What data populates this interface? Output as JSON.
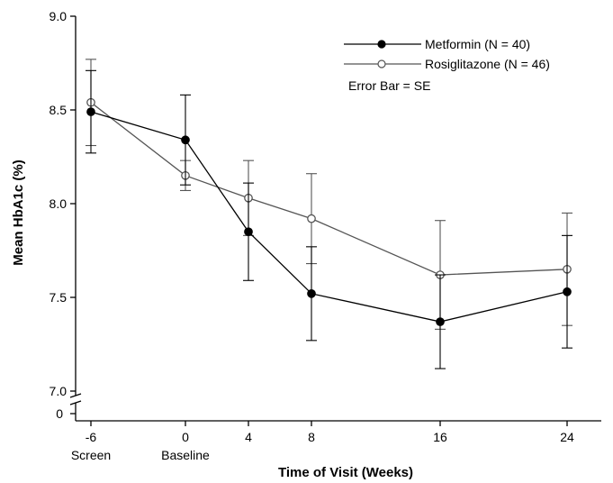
{
  "chart_data": {
    "type": "line",
    "xlabel": "Time of Visit (Weeks)",
    "ylabel": "Mean HbA1c (%)",
    "ylim": [
      7.0,
      9.0
    ],
    "yticks": [
      "9.0",
      "8.5",
      "8.0",
      "7.5",
      "7.0"
    ],
    "y_break_label": "0",
    "x": [
      -6,
      0,
      4,
      8,
      16,
      24
    ],
    "x_tick_labels": [
      "-6",
      "0",
      "4",
      "8",
      "16",
      "24"
    ],
    "x_sub_labels": [
      "Screen",
      "Baseline",
      "",
      "",
      "",
      ""
    ],
    "error_bar_note": "Error Bar = SE",
    "legend_position": "top-right",
    "series": [
      {
        "name": "Metformin (N = 40)",
        "marker": "filled-circle",
        "color": "#000000",
        "values": [
          8.49,
          8.34,
          7.85,
          7.52,
          7.37,
          7.53
        ],
        "error": [
          0.22,
          0.24,
          0.26,
          0.25,
          0.25,
          0.3
        ]
      },
      {
        "name": "Rosiglitazone (N = 46)",
        "marker": "open-circle",
        "color": "#555555",
        "values": [
          8.54,
          8.15,
          8.03,
          7.92,
          7.62,
          7.65
        ],
        "error": [
          0.23,
          0.08,
          0.2,
          0.24,
          0.29,
          0.3
        ]
      }
    ]
  }
}
